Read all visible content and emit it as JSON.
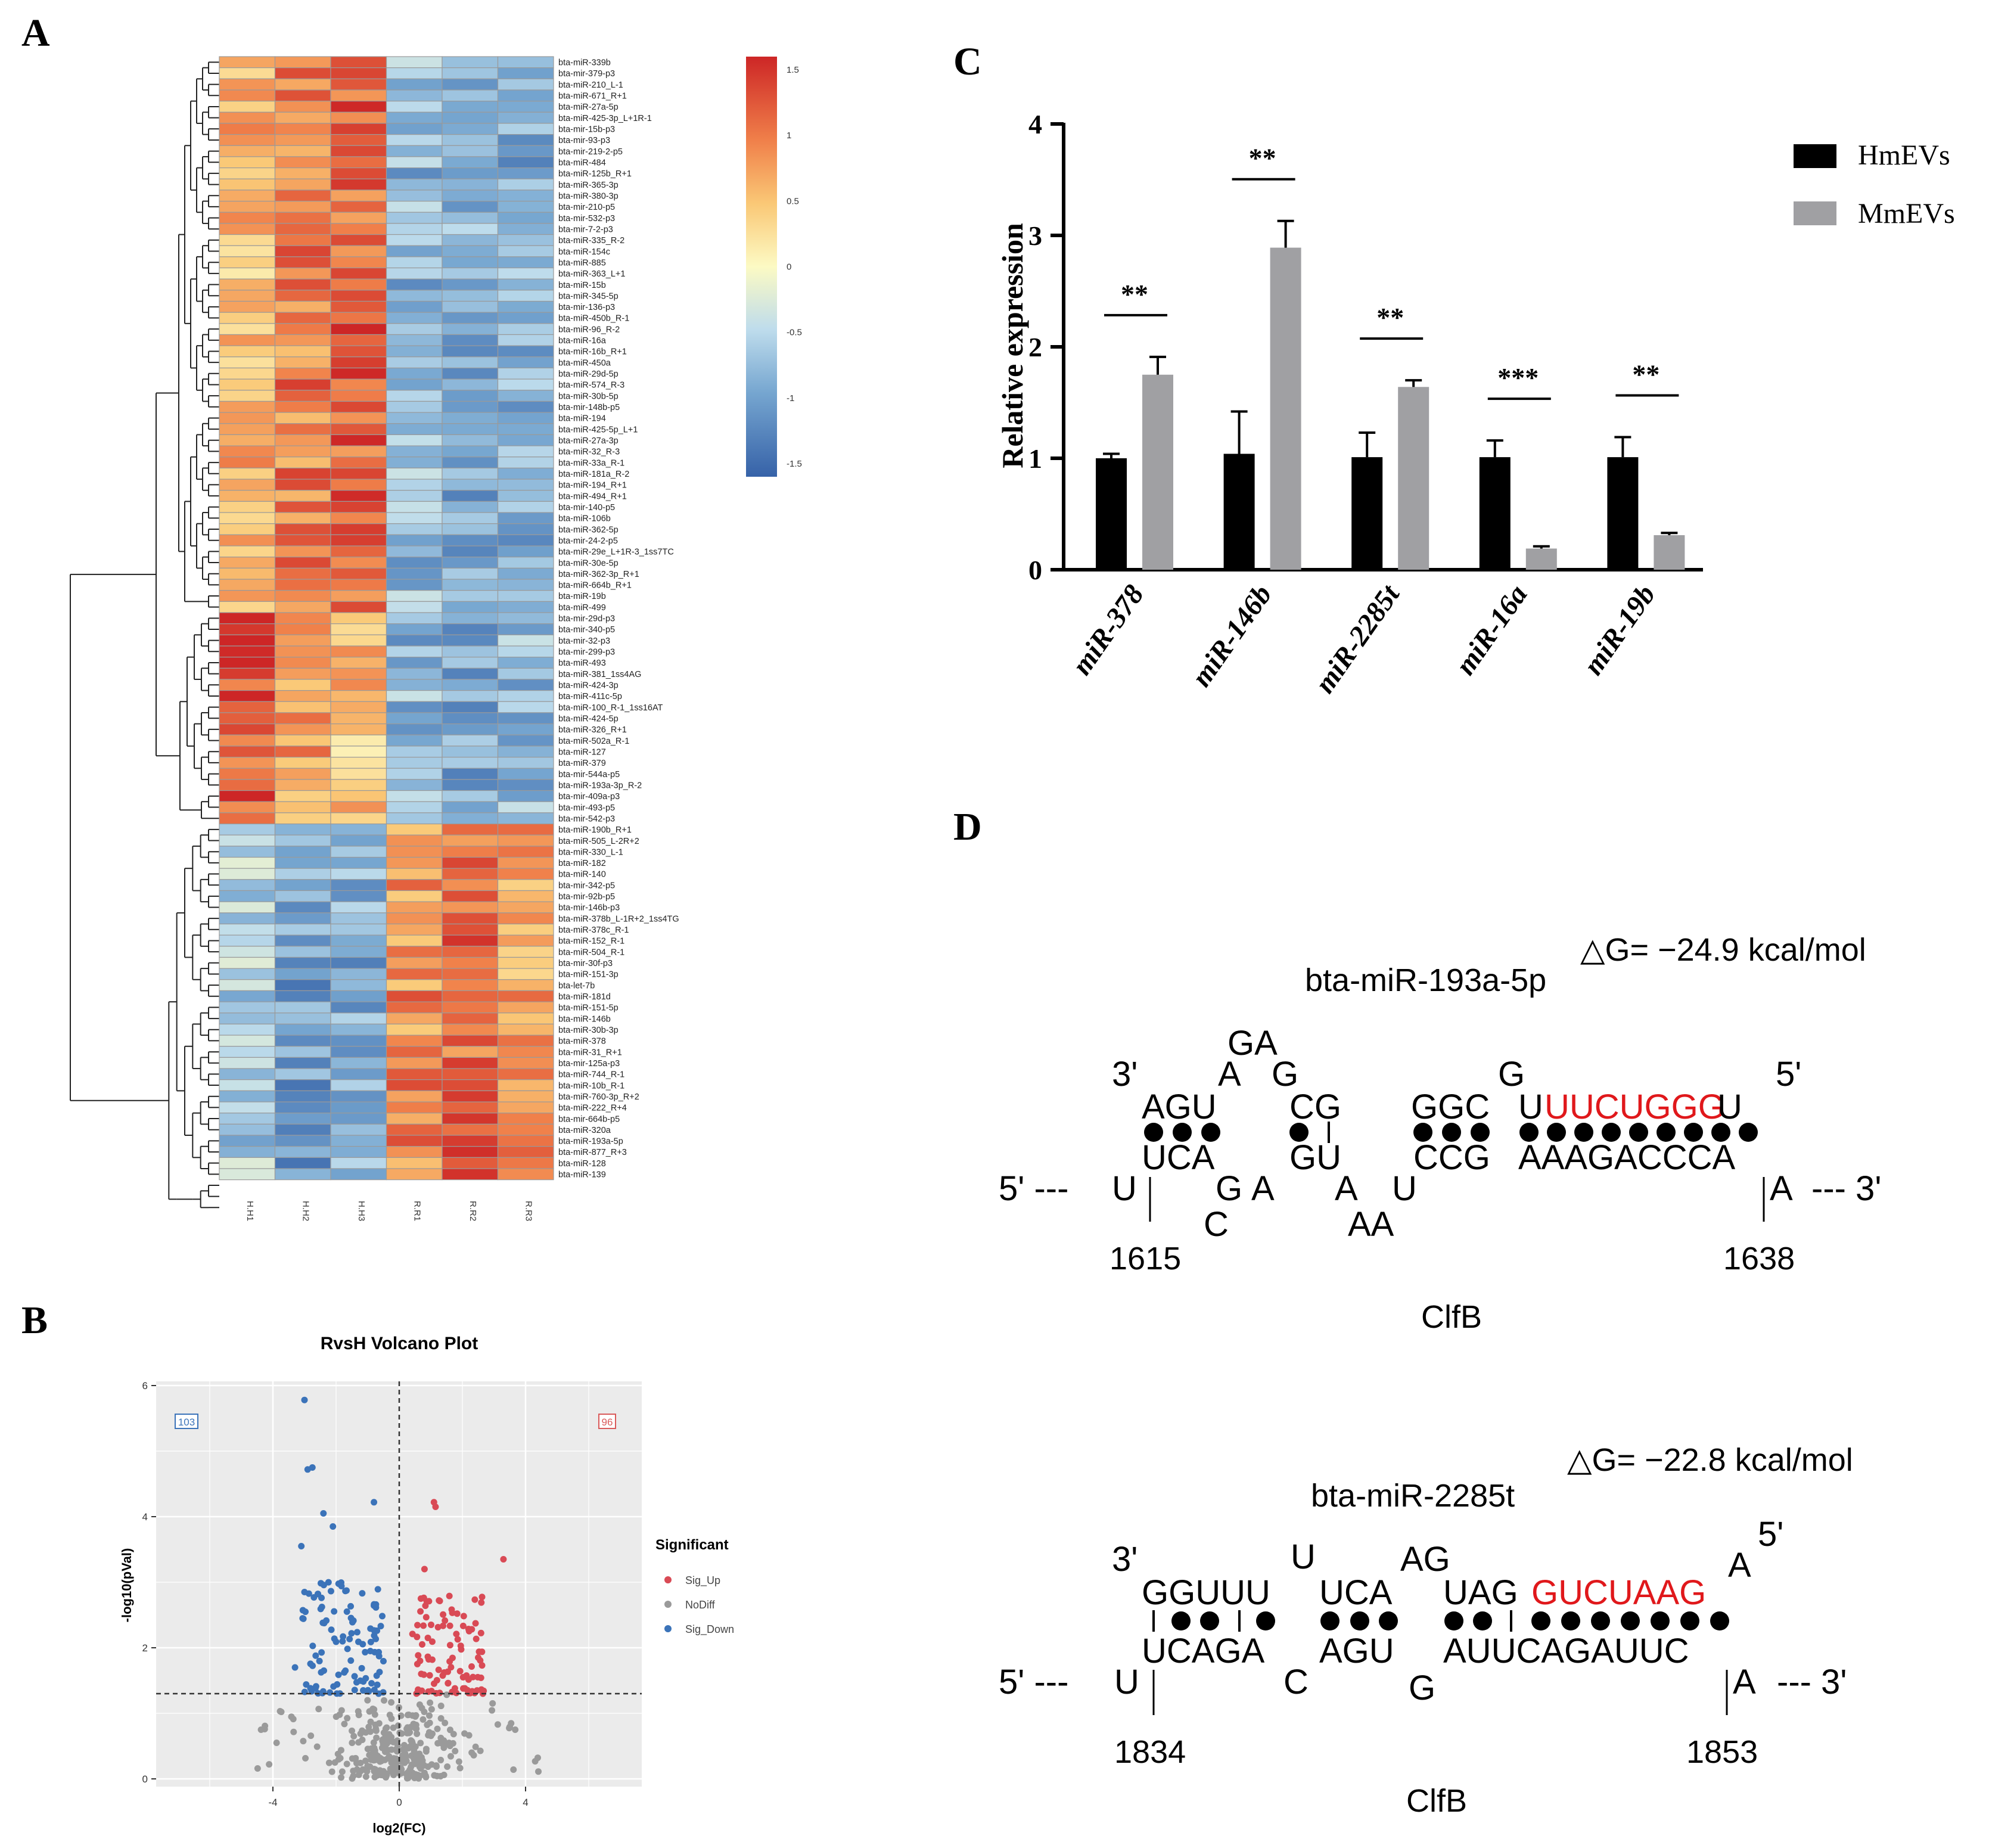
{
  "panels": {
    "a": "A",
    "b": "B",
    "c": "C",
    "d": "D"
  },
  "heatmap": {
    "columns": [
      "H.H1",
      "H.H2",
      "H.H3",
      "R.R1",
      "R.R2",
      "R.R3"
    ],
    "rows": [
      "bta-miR-339b",
      "bta-mir-379-p3",
      "bta-miR-210_L-1",
      "bta-miR-671_R+1",
      "bta-miR-27a-5p",
      "bta-miR-425-3p_L+1R-1",
      "bta-mir-15b-p3",
      "bta-mir-93-p3",
      "bta-mir-219-2-p5",
      "bta-miR-484",
      "bta-miR-125b_R+1",
      "bta-miR-365-3p",
      "bta-miR-380-3p",
      "bta-mir-210-p5",
      "bta-mir-532-p3",
      "bta-mir-7-2-p3",
      "bta-miR-335_R-2",
      "bta-miR-154c",
      "bta-miR-885",
      "bta-miR-363_L+1",
      "bta-miR-15b",
      "bta-miR-345-5p",
      "bta-mir-136-p3",
      "bta-miR-450b_R-1",
      "bta-miR-96_R-2",
      "bta-miR-16a",
      "bta-miR-16b_R+1",
      "bta-miR-450a",
      "bta-miR-29d-5p",
      "bta-miR-574_R-3",
      "bta-miR-30b-5p",
      "bta-mir-148b-p5",
      "bta-miR-194",
      "bta-miR-425-5p_L+1",
      "bta-miR-27a-3p",
      "bta-miR-32_R-3",
      "bta-miR-33a_R-1",
      "bta-miR-181a_R-2",
      "bta-miR-194_R+1",
      "bta-miR-494_R+1",
      "bta-mir-140-p5",
      "bta-miR-106b",
      "bta-miR-362-5p",
      "bta-mir-24-2-p5",
      "bta-miR-29e_L+1R-3_1ss7TC",
      "bta-miR-30e-5p",
      "bta-miR-362-3p_R+1",
      "bta-miR-664b_R+1",
      "bta-miR-19b",
      "bta-miR-499",
      "bta-mir-29d-p3",
      "bta-mir-340-p5",
      "bta-mir-32-p3",
      "bta-mir-299-p3",
      "bta-miR-493",
      "bta-miR-381_1ss4AG",
      "bta-miR-424-3p",
      "bta-miR-411c-5p",
      "bta-miR-100_R-1_1ss16AT",
      "bta-miR-424-5p",
      "bta-miR-326_R+1",
      "bta-miR-502a_R-1",
      "bta-miR-127",
      "bta-miR-379",
      "bta-mir-544a-p5",
      "bta-miR-193a-3p_R-2",
      "bta-mir-409a-p3",
      "bta-mir-493-p5",
      "bta-mir-542-p3",
      "bta-miR-190b_R+1",
      "bta-miR-505_L-2R+2",
      "bta-miR-330_L-1",
      "bta-miR-182",
      "bta-miR-140",
      "bta-mir-342-p5",
      "bta-mir-92b-p5",
      "bta-mir-146b-p3",
      "bta-miR-378b_L-1R+2_1ss4TG",
      "bta-miR-378c_R-1",
      "bta-miR-152_R-1",
      "bta-miR-504_R-1",
      "bta-mir-30f-p3",
      "bta-miR-151-3p",
      "bta-let-7b",
      "bta-miR-181d",
      "bta-miR-151-5p",
      "bta-miR-146b",
      "bta-miR-30b-3p",
      "bta-miR-378",
      "bta-miR-31_R+1",
      "bta-mir-125a-p3",
      "bta-miR-744_R-1",
      "bta-miR-10b_R-1",
      "bta-miR-760-3p_R+2",
      "bta-miR-222_R+4",
      "bta-mir-664b-p5",
      "bta-miR-320a",
      "bta-miR-193a-5p",
      "bta-miR-877_R+3",
      "bta-miR-128",
      "bta-miR-139"
    ],
    "colorbar": {
      "ticks": [
        "1.5",
        "1",
        "0.5",
        "0",
        "-0.5",
        "-1",
        "-1.5"
      ]
    }
  },
  "volcano": {
    "title": "RvsH Volcano Plot",
    "xlabel": "log2(FC)",
    "ylabel": "-log10(pVal)",
    "xticks": [
      "-4",
      "0",
      "4"
    ],
    "yticks": [
      "0",
      "2",
      "4",
      "6"
    ],
    "count_down": "103",
    "count_up": "96",
    "legend_title": "Significant",
    "legend": [
      "Sig_Up",
      "NoDiff",
      "Sig_Down"
    ]
  },
  "chart_data": {
    "type": "bar",
    "title": "",
    "xlabel": "",
    "ylabel": "Relative expression",
    "ylim": [
      0,
      4
    ],
    "yticks": [
      "0",
      "1",
      "2",
      "3",
      "4"
    ],
    "categories": [
      "miR-378",
      "miR-146b",
      "miR-2285t",
      "miR-16a",
      "miR-19b"
    ],
    "series": [
      {
        "name": "HmEVs",
        "values": [
          1.0,
          1.04,
          1.01,
          1.01,
          1.01
        ],
        "errors": [
          0.04,
          0.38,
          0.22,
          0.15,
          0.18
        ]
      },
      {
        "name": "MmEVs",
        "values": [
          1.75,
          2.89,
          1.64,
          0.19,
          0.31
        ],
        "errors": [
          0.16,
          0.24,
          0.06,
          0.02,
          0.02
        ]
      }
    ],
    "significance": [
      "**",
      "**",
      "**",
      "***",
      "**"
    ]
  },
  "rna1": {
    "name": "bta-miR-193a-5p",
    "dg": "△G= −24.9 kcal/mol",
    "p3": "3'",
    "p5": "5'",
    "t5": "5' ---",
    "t3": "--- 3'",
    "target": "ClfB",
    "pos1": "1615",
    "pos2": "1638",
    "top": "AGU",
    "topA": "A",
    "topGA": "GA",
    "topG": "G",
    "topCG": "CG",
    "topGGC": "GGC",
    "topGb": "G",
    "topU1": "U",
    "seed": "UUCUGGG",
    "topU2": "U",
    "botU": "U",
    "botUCA": "UCA",
    "botG": "G",
    "botC": "C",
    "botA1": "A",
    "botGU": "GU",
    "botA2": "A",
    "botAA": "AA",
    "botU2": "U",
    "botCCG": "CCG",
    "botAAAG": "AAAGACCCA",
    "botA3": "A"
  },
  "rna2": {
    "name": "bta-miR-2285t",
    "dg": "△G= −22.8 kcal/mol",
    "p3": "3'",
    "p5": "5'",
    "t5": "5' ---",
    "t3": "--- 3'",
    "target": "ClfB",
    "pos1": "1834",
    "pos2": "1853",
    "topGGUUU": "GGUUU",
    "topU": "U",
    "topUCA": "UCA",
    "topAG": "AG",
    "topUAG": "UAG",
    "seed": "GUCUAAG",
    "topA": "A",
    "botU": "U",
    "botUCAGA": "UCAGA",
    "botC": "C",
    "botAGU": "AGU",
    "botG": "G",
    "botAUUC": "AUUCAGAUUC",
    "botA": "A"
  }
}
